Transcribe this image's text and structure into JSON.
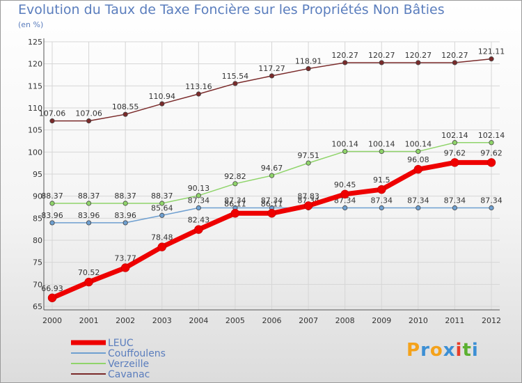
{
  "title": "Evolution du Taux de Taxe Foncière sur les Propriétés Non Bâties",
  "subtitle": "(en %)",
  "logo": {
    "letters": [
      "P",
      "r",
      "o",
      "x",
      "i",
      "t",
      "i"
    ],
    "colors": [
      "#f4a21b",
      "#3c8fd4",
      "#f4a21b",
      "#3c8fd4",
      "#e83e2a",
      "#5bb030",
      "#3c8fd4"
    ]
  },
  "chart_data": {
    "type": "line",
    "x": [
      "2000",
      "2001",
      "2002",
      "2003",
      "2004",
      "2005",
      "2006",
      "2007",
      "2008",
      "2009",
      "2010",
      "2011",
      "2012"
    ],
    "ylim": [
      65,
      125
    ],
    "yticks": [
      65,
      70,
      75,
      80,
      85,
      90,
      95,
      100,
      105,
      110,
      115,
      120,
      125
    ],
    "grid": true,
    "series": [
      {
        "name": "Cavanac",
        "color": "#7a2a2a",
        "values": [
          107.06,
          107.06,
          108.55,
          110.94,
          113.16,
          115.54,
          117.27,
          118.91,
          120.27,
          120.27,
          120.27,
          120.27,
          121.11
        ],
        "labels": [
          "107.06",
          "107.06",
          "108.55",
          "110.94",
          "113.16",
          "115.54",
          "117.27",
          "118.91",
          "120.27",
          "120.27",
          "120.27",
          "120.27",
          "121.11"
        ]
      },
      {
        "name": "Verzeille",
        "color": "#8fd46a",
        "values": [
          88.37,
          88.37,
          88.37,
          88.37,
          90.13,
          92.82,
          94.67,
          97.51,
          100.14,
          100.14,
          100.14,
          102.14,
          102.14
        ],
        "labels": [
          "88.37",
          "88.37",
          "88.37",
          "88.37",
          "90.13",
          "92.82",
          "94.67",
          "97.51",
          "100.14",
          "100.14",
          "100.14",
          "102.14",
          "102.14"
        ]
      },
      {
        "name": "Couffoulens",
        "color": "#6e9fd0",
        "values": [
          83.96,
          83.96,
          83.96,
          85.64,
          87.34,
          87.34,
          87.34,
          87.34,
          87.34,
          87.34,
          87.34,
          87.34,
          87.34
        ],
        "labels": [
          "83.96",
          "83.96",
          "83.96",
          "85.64",
          "87.34",
          "87.34",
          "87.34",
          "87.34",
          "87.34",
          "87.34",
          "87.34",
          "87.34",
          "87.34"
        ]
      },
      {
        "name": "LEUC",
        "color": "#ee0000",
        "values": [
          66.93,
          70.52,
          73.77,
          78.48,
          82.43,
          86.11,
          86.11,
          87.83,
          90.45,
          91.5,
          96.08,
          97.62,
          97.62
        ],
        "labels": [
          "66.93",
          "70.52",
          "73.77",
          "78.48",
          "82.43",
          "86.11",
          "86.11",
          "87.83",
          "90.45",
          "91.5",
          "96.08",
          "97.62",
          "97.62"
        ]
      }
    ],
    "legend": [
      "LEUC",
      "Couffoulens",
      "Verzeille",
      "Cavanac"
    ]
  }
}
